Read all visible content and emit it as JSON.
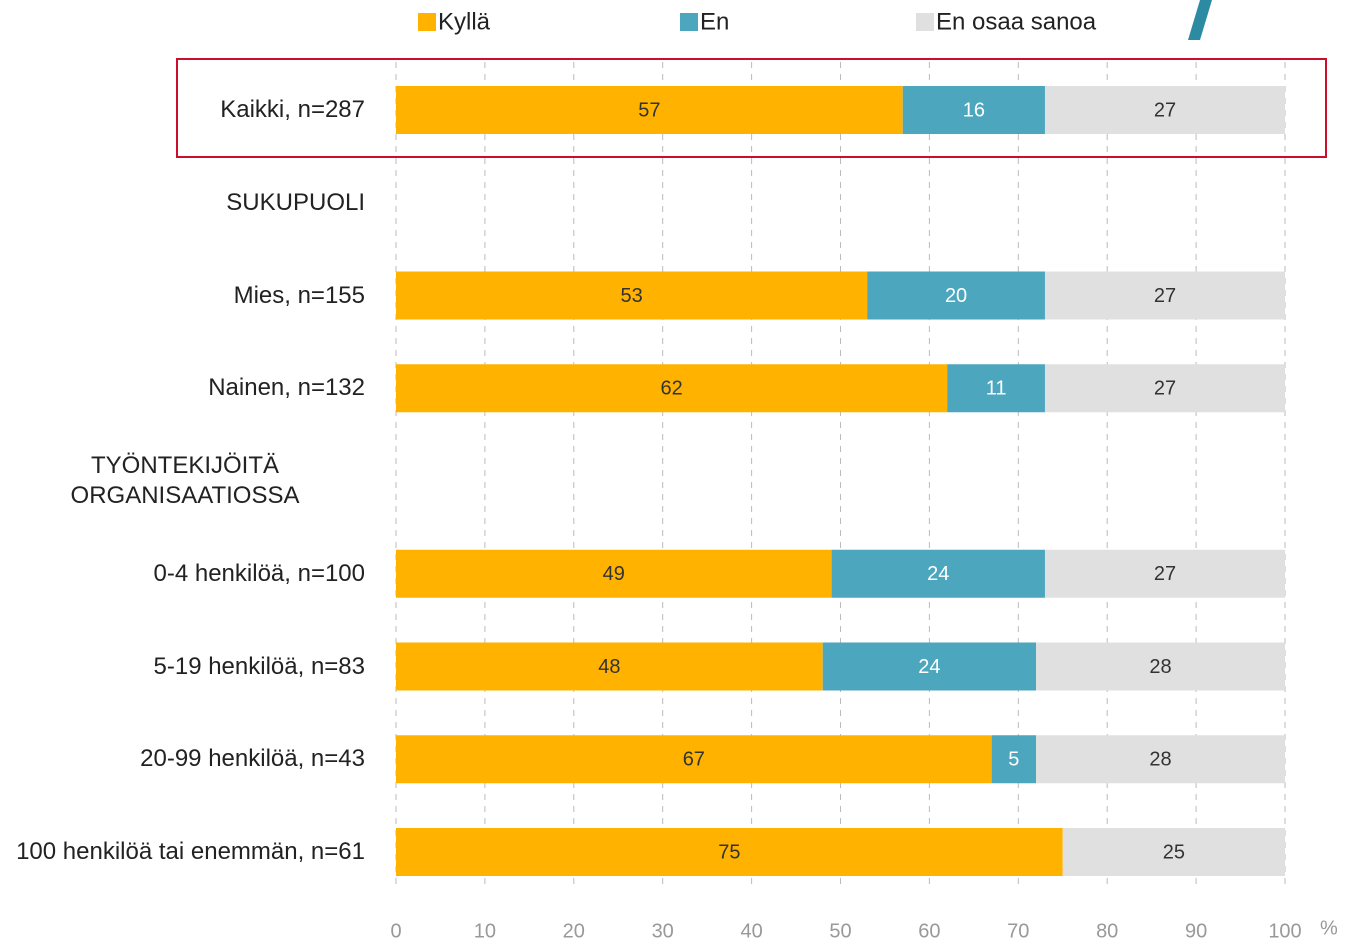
{
  "chart_data": {
    "type": "stacked_bar_horizontal",
    "categories": [
      "Kaikki, n=287",
      "SUKUPUOLI",
      "Mies, n=155",
      "Nainen, n=132",
      "TYÖNTEKIJÖITÄ ORGANISAATIOSSA",
      "0-4 henkilöä, n=100",
      "5-19 henkilöä, n=83",
      "20-99 henkilöä, n=43",
      "100 henkilöä tai enemmän, n=61"
    ],
    "series": [
      {
        "name": "Kyllä",
        "color": "#FFB300",
        "values": [
          57,
          null,
          53,
          62,
          null,
          49,
          48,
          67,
          75
        ]
      },
      {
        "name": "En",
        "color": "#4BA6BE",
        "values": [
          16,
          null,
          20,
          11,
          null,
          24,
          24,
          5,
          0
        ]
      },
      {
        "name": "En osaa sanoa",
        "color": "#E0E0E0",
        "values": [
          27,
          null,
          27,
          27,
          null,
          27,
          28,
          28,
          25
        ]
      }
    ],
    "x_unit": "%",
    "xlim": [
      0,
      100
    ],
    "xticks": [
      0,
      10,
      20,
      30,
      40,
      50,
      60,
      70,
      80,
      90,
      100
    ],
    "grid": true,
    "legend": "top"
  }
}
